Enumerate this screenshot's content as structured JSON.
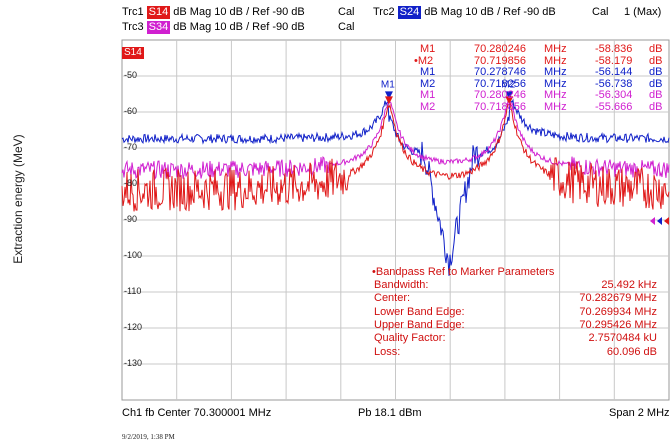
{
  "outer_ylabel": "Extraction energy (MeV)",
  "colors": {
    "trc1": "#e01818",
    "trc2": "#1020c8",
    "trc3": "#d020d0",
    "trc4": "#d01010",
    "grid": "#c8c8c8",
    "bg": "#ffffff"
  },
  "header": {
    "trc1": {
      "name": "Trc1",
      "param": "S14",
      "text": "dB Mag  10 dB /  Ref -90 dB",
      "cal": "Cal"
    },
    "trc2": {
      "name": "Trc2",
      "param": "S24",
      "text": "dB Mag  10 dB /  Ref -90 dB",
      "cal": "Cal"
    },
    "trc3": {
      "name": "Trc3",
      "param": "S34",
      "text": "dB Mag  10 dB /  Ref -90 dB",
      "cal": "Cal"
    },
    "right": "1 (Max)"
  },
  "trace_tag": "S14",
  "y_ticks": [
    "-50",
    "-60",
    "-70",
    "-80",
    "-90",
    "-100",
    "-110",
    "-120",
    "-130"
  ],
  "markers_table": [
    {
      "name": "M1",
      "freq": "70.280246",
      "unit": "MHz",
      "val": "-58.836",
      "vunit": "dB",
      "color": "#e01818",
      "active": false
    },
    {
      "name": "M2",
      "freq": "70.719856",
      "unit": "MHz",
      "val": "-58.179",
      "vunit": "dB",
      "color": "#e01818",
      "active": true
    },
    {
      "name": "M1",
      "freq": "70.278746",
      "unit": "MHz",
      "val": "-56.144",
      "vunit": "dB",
      "color": "#1020c8",
      "active": false
    },
    {
      "name": "M2",
      "freq": "70.718256",
      "unit": "MHz",
      "val": "-56.738",
      "vunit": "dB",
      "color": "#1020c8",
      "active": false
    },
    {
      "name": "M1",
      "freq": "70.280246",
      "unit": "MHz",
      "val": "-56.304",
      "vunit": "dB",
      "color": "#d020d0",
      "active": false
    },
    {
      "name": "M2",
      "freq": "70.718856",
      "unit": "MHz",
      "val": "-55.666",
      "vunit": "dB",
      "color": "#d020d0",
      "active": false
    }
  ],
  "marker_labels": {
    "m1": "M1",
    "m2": "M2"
  },
  "bandpass": {
    "title": "•Bandpass Ref to Marker Parameters",
    "rows": [
      {
        "label": "Bandwidth:",
        "value": "25.492 kHz"
      },
      {
        "label": "Center:",
        "value": "70.282679 MHz"
      },
      {
        "label": "Lower Band Edge:",
        "value": "70.269934 MHz"
      },
      {
        "label": "Upper Band Edge:",
        "value": "70.295426 MHz"
      },
      {
        "label": "Quality Factor:",
        "value": "2.7570484 kU"
      },
      {
        "label": "Loss:",
        "value": "60.096 dB"
      }
    ]
  },
  "footer": {
    "left": "Ch1  fb  Center  70.300001 MHz",
    "mid": "Pb  18.1 dBm",
    "right": "Span  2 MHz"
  },
  "timestamp": "9/2/2019, 1:38 PM"
}
